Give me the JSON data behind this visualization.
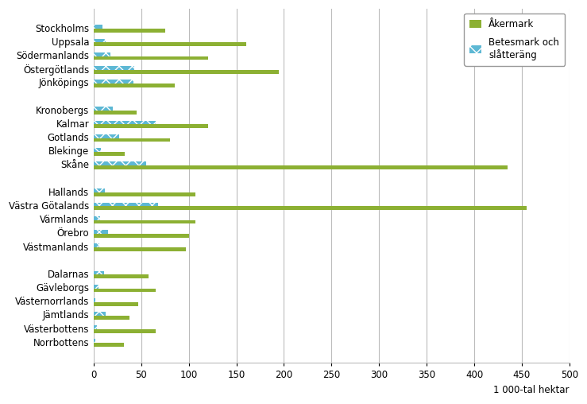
{
  "categories": [
    "Stockholms",
    "Uppsala",
    "Södermanlands",
    "Östergötlands",
    "Jönköpings",
    "",
    "Kronobergs",
    "Kalmar",
    "Gotlands",
    "Blekinge",
    "Skåne",
    "",
    "Hallands",
    "Västra Götalands",
    "Värmlands",
    "Örebro",
    "Västmanlands",
    "",
    "Dalarnas",
    "Gävleborgs",
    "Västernorrlands",
    "Jämtlands",
    "Västerbottens",
    "Norrbottens"
  ],
  "akermark": [
    75,
    160,
    120,
    195,
    85,
    0,
    45,
    120,
    80,
    33,
    435,
    0,
    107,
    455,
    107,
    100,
    97,
    0,
    58,
    65,
    47,
    38,
    65,
    32
  ],
  "betesmark": [
    9,
    13,
    18,
    43,
    42,
    0,
    20,
    65,
    27,
    8,
    55,
    0,
    12,
    68,
    7,
    15,
    6,
    0,
    11,
    5,
    2,
    13,
    3,
    2
  ],
  "akermark_color": "#8CB033",
  "betesmark_color": "#5DB8D4",
  "title": "",
  "xlabel": "1 000-tal hektar",
  "xlim": [
    0,
    500
  ],
  "xticks": [
    0,
    50,
    100,
    150,
    200,
    250,
    300,
    350,
    400,
    450,
    500
  ],
  "bar_height": 0.28,
  "background_color": "#ffffff",
  "grid_color": "#bbbbbb",
  "font_size": 8.5
}
